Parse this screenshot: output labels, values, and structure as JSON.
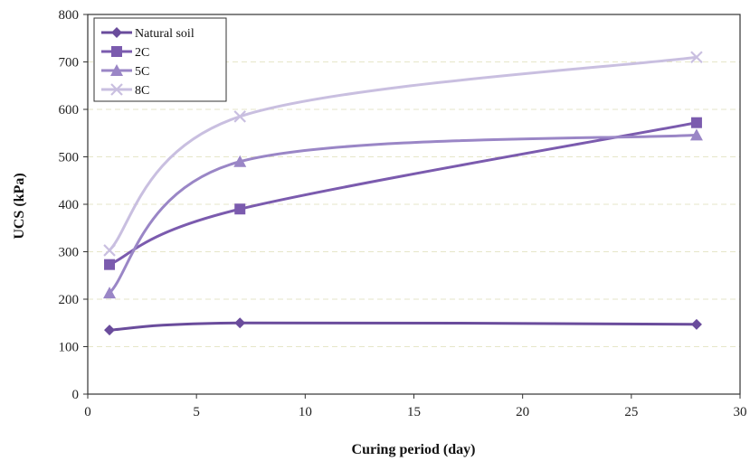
{
  "chart_data": {
    "type": "line",
    "xlabel": "Curing period (day)",
    "ylabel": "UCS (kPa)",
    "xlim": [
      0,
      30
    ],
    "ylim": [
      0,
      800
    ],
    "xticks": [
      0,
      5,
      10,
      15,
      20,
      25,
      30
    ],
    "yticks": [
      0,
      100,
      200,
      300,
      400,
      500,
      600,
      700,
      800
    ],
    "grid": "horizontal dashed",
    "legend_position": "top-left",
    "series": [
      {
        "name": "Natural soil",
        "marker": "diamond",
        "color": "#6A4C9C",
        "x": [
          1,
          7,
          28
        ],
        "y": [
          135,
          150,
          147
        ]
      },
      {
        "name": "2C",
        "marker": "square",
        "color": "#7B5BAE",
        "x": [
          1,
          7,
          28
        ],
        "y": [
          273,
          390,
          572
        ]
      },
      {
        "name": "5C",
        "marker": "triangle",
        "color": "#9A86C6",
        "x": [
          1,
          7,
          28
        ],
        "y": [
          213,
          490,
          546
        ]
      },
      {
        "name": "8C",
        "marker": "x",
        "color": "#C9BFE0",
        "x": [
          1,
          7,
          28
        ],
        "y": [
          303,
          585,
          710
        ]
      }
    ]
  }
}
